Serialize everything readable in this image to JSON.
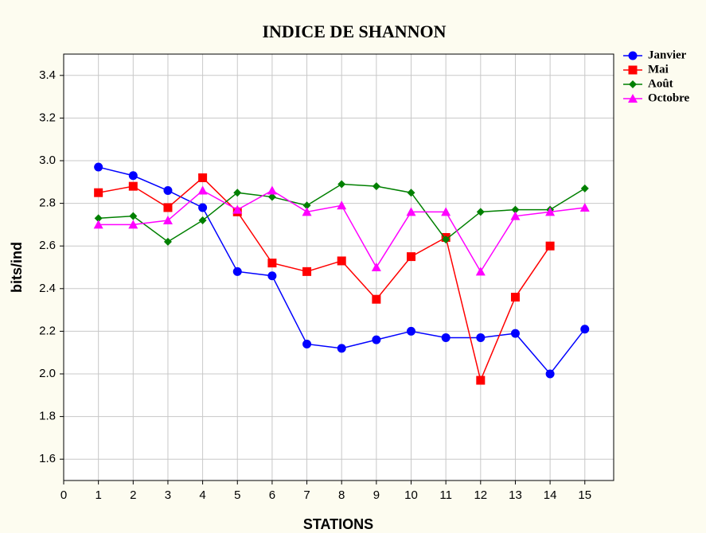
{
  "chart_data": {
    "type": "line",
    "title": "INDICE DE SHANNON",
    "x_label": "STATIONS",
    "y_label": "bits/ind",
    "x": [
      1,
      2,
      3,
      4,
      5,
      6,
      7,
      8,
      9,
      10,
      11,
      12,
      13,
      14,
      15
    ],
    "series": [
      {
        "name": "Janvier",
        "color": "#0000ff",
        "marker": "circle",
        "values": [
          2.97,
          2.93,
          2.86,
          2.78,
          2.48,
          2.46,
          2.14,
          2.12,
          2.16,
          2.2,
          2.17,
          2.17,
          2.19,
          2.0,
          2.21
        ]
      },
      {
        "name": "Mai",
        "color": "#ff0000",
        "marker": "square",
        "values": [
          2.85,
          2.88,
          2.78,
          2.92,
          2.76,
          2.52,
          2.48,
          2.53,
          2.35,
          2.55,
          2.64,
          1.97,
          2.36,
          2.6,
          null
        ]
      },
      {
        "name": "Août",
        "color": "#008000",
        "marker": "diamond",
        "values": [
          2.73,
          2.74,
          2.62,
          2.72,
          2.85,
          2.83,
          2.79,
          2.89,
          2.88,
          2.85,
          2.63,
          2.76,
          2.77,
          2.77,
          2.87
        ]
      },
      {
        "name": "Octobre",
        "color": "#ff00ff",
        "marker": "triangle",
        "values": [
          2.7,
          2.7,
          2.72,
          2.86,
          2.77,
          2.86,
          2.76,
          2.79,
          2.5,
          2.76,
          2.76,
          2.48,
          2.74,
          2.76,
          2.78
        ]
      }
    ],
    "xlim": [
      0,
      15.83
    ],
    "xticks": [
      0,
      1,
      2,
      3,
      4,
      5,
      6,
      7,
      8,
      9,
      10,
      11,
      12,
      13,
      14,
      15
    ],
    "ylim": [
      1.5,
      3.5
    ],
    "yticks": [
      1.6,
      1.8,
      {
        "value": 2.0,
        "label": "2.0"
      },
      2.2,
      2.4,
      2.6,
      2.8,
      {
        "value": 3.0,
        "label": "3.0"
      },
      3.2,
      3.4
    ],
    "grid": true,
    "legend": "outside-top-right"
  }
}
